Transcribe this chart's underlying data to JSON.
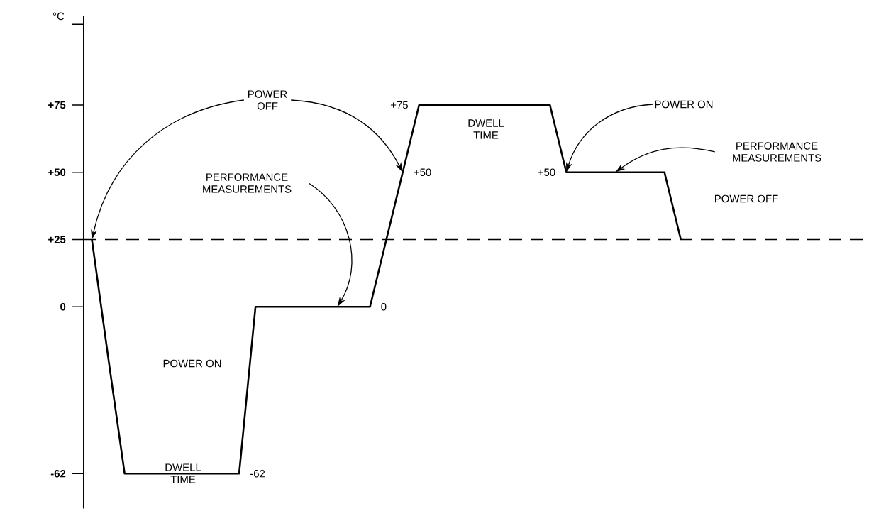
{
  "chart_data": {
    "type": "line",
    "ylabel": "°C",
    "categories": [
      null,
      null,
      null,
      null,
      null,
      null,
      null,
      null,
      null,
      null,
      null,
      null,
      null,
      null,
      null,
      null,
      null,
      null,
      null,
      null,
      null,
      null,
      null,
      null,
      null,
      null,
      null,
      null,
      null,
      null,
      null,
      null,
      null,
      null,
      null,
      null,
      null,
      null,
      null,
      null,
      null,
      null,
      null,
      null,
      null,
      null,
      null,
      null
    ],
    "ylim": [
      -75,
      108
    ],
    "yticks": [
      {
        "value": 105,
        "label": null
      },
      {
        "value": 75,
        "label": "+75"
      },
      {
        "value": 50,
        "label": "+50"
      },
      {
        "value": 25,
        "label": "+25"
      },
      0,
      {
        "value": -62,
        "label": "-62"
      }
    ],
    "tick_labels": "y",
    "series": [
      {
        "color": "#000000",
        "values": [
          25,
          -19,
          -62,
          -62,
          -62,
          -62,
          -62,
          -62,
          -62,
          -62,
          0,
          0,
          0,
          0,
          0,
          0,
          0,
          0,
          25,
          50,
          75,
          75,
          75,
          75,
          75,
          75,
          75,
          75,
          75,
          50,
          50,
          50,
          50,
          50,
          50,
          50,
          25,
          null,
          null,
          null,
          null,
          null,
          null,
          null,
          null,
          null,
          null,
          null
        ],
        "value_labels": [
          null,
          null,
          null,
          null,
          null,
          null,
          null,
          null,
          null,
          "-62",
          null,
          null,
          null,
          null,
          null,
          null,
          null,
          "0",
          null,
          "+50",
          "+75",
          null,
          null,
          null,
          null,
          null,
          null,
          null,
          null,
          "+50",
          null,
          null,
          null,
          null,
          null,
          null,
          null,
          null,
          null,
          null,
          null,
          null,
          null,
          null,
          null,
          null,
          null,
          null
        ]
      }
    ],
    "ref_lines": [
      {
        "axis": "y",
        "value": 25,
        "line_style": "dashed"
      }
    ],
    "annotations": [
      "POWER OFF",
      "PERFORMANCE MEASUREMENTS",
      "POWER ON",
      "DWELL TIME",
      "DWELL TIME",
      "POWER ON",
      "PERFORMANCE MEASUREMENTS",
      "POWER OFF"
    ]
  }
}
